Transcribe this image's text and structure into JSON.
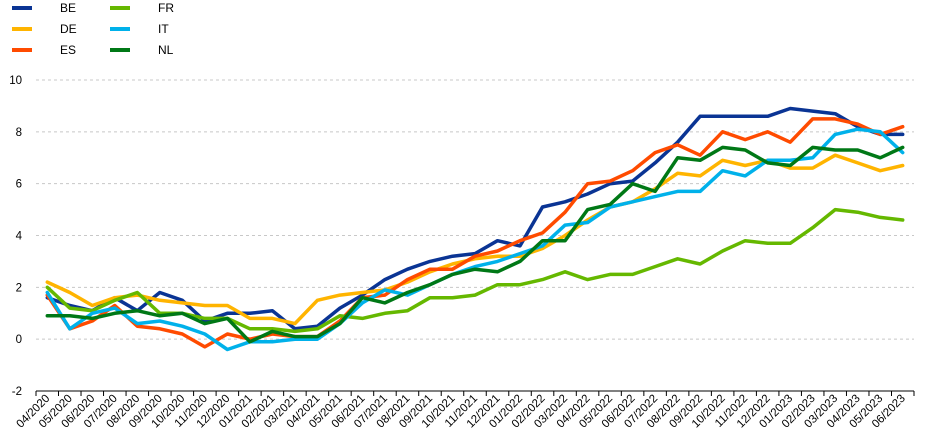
{
  "chart_data": {
    "type": "line",
    "title": "",
    "xlabel": "",
    "ylabel": "",
    "ylim": [
      -2,
      10
    ],
    "yticks": [
      -2,
      0,
      2,
      4,
      6,
      8,
      10
    ],
    "grid": "horizontal dashed",
    "legend_placement": "top-left",
    "categories": [
      "04/2020",
      "05/2020",
      "06/2020",
      "07/2020",
      "08/2020",
      "09/2020",
      "10/2020",
      "11/2020",
      "12/2020",
      "01/2021",
      "02/2021",
      "03/2021",
      "04/2021",
      "05/2021",
      "06/2021",
      "07/2021",
      "08/2021",
      "09/2021",
      "10/2021",
      "11/2021",
      "12/2021",
      "01/2022",
      "02/2022",
      "03/2022",
      "04/2022",
      "05/2022",
      "06/2022",
      "07/2022",
      "08/2022",
      "09/2022",
      "10/2022",
      "11/2022",
      "12/2022",
      "01/2023",
      "02/2023",
      "03/2023",
      "04/2023",
      "05/2023",
      "06/2023"
    ],
    "series": [
      {
        "name": "BE",
        "color": "#0a3494",
        "values": [
          1.6,
          1.3,
          1.1,
          1.6,
          1.1,
          1.8,
          1.5,
          0.7,
          1.0,
          1.0,
          1.1,
          0.4,
          0.5,
          1.2,
          1.7,
          2.3,
          2.7,
          3.0,
          3.2,
          3.3,
          3.8,
          3.6,
          5.1,
          5.3,
          5.6,
          6.0,
          6.1,
          6.8,
          7.6,
          8.6,
          8.6,
          8.6,
          8.6,
          8.9,
          8.8,
          8.7,
          8.2,
          7.9,
          7.9
        ]
      },
      {
        "name": "DE",
        "color": "#ffb400",
        "values": [
          2.2,
          1.8,
          1.3,
          1.6,
          1.7,
          1.5,
          1.4,
          1.3,
          1.3,
          0.8,
          0.8,
          0.6,
          1.5,
          1.7,
          1.8,
          1.9,
          2.2,
          2.6,
          2.9,
          3.1,
          3.2,
          3.2,
          3.5,
          4.0,
          4.6,
          5.1,
          5.3,
          5.8,
          6.4,
          6.3,
          6.9,
          6.7,
          6.9,
          6.6,
          6.6,
          7.1,
          6.8,
          6.5,
          6.7
        ]
      },
      {
        "name": "ES",
        "color": "#ff4b00",
        "values": [
          1.7,
          0.4,
          0.7,
          1.3,
          0.5,
          0.4,
          0.2,
          -0.3,
          0.2,
          0.0,
          0.2,
          0.1,
          0.1,
          0.7,
          1.6,
          1.7,
          2.3,
          2.7,
          2.7,
          3.2,
          3.4,
          3.8,
          4.1,
          4.9,
          6.0,
          6.1,
          6.5,
          7.2,
          7.5,
          7.1,
          8.0,
          7.7,
          8.0,
          7.6,
          8.5,
          8.5,
          8.3,
          7.9,
          8.2
        ]
      },
      {
        "name": "FR",
        "color": "#65b800",
        "values": [
          2.0,
          1.2,
          1.1,
          1.5,
          1.8,
          1.0,
          1.0,
          0.8,
          0.8,
          0.4,
          0.4,
          0.3,
          0.4,
          0.9,
          0.8,
          1.0,
          1.1,
          1.6,
          1.6,
          1.7,
          2.1,
          2.1,
          2.3,
          2.6,
          2.3,
          2.5,
          2.5,
          2.8,
          3.1,
          2.9,
          3.4,
          3.8,
          3.7,
          3.7,
          4.3,
          5.0,
          4.9,
          4.7,
          4.6
        ]
      },
      {
        "name": "IT",
        "color": "#00b1ea",
        "values": [
          1.8,
          0.4,
          1.0,
          1.2,
          0.6,
          0.7,
          0.5,
          0.2,
          -0.4,
          -0.1,
          -0.1,
          0.0,
          0.0,
          0.6,
          1.4,
          1.9,
          1.7,
          2.1,
          2.5,
          2.8,
          3.0,
          3.3,
          3.6,
          4.4,
          4.5,
          5.1,
          5.3,
          5.5,
          5.7,
          5.7,
          6.5,
          6.3,
          6.9,
          6.9,
          7.0,
          7.9,
          8.1,
          8.0,
          7.2
        ]
      },
      {
        "name": "NL",
        "color": "#007816",
        "values": [
          0.9,
          0.9,
          0.8,
          1.0,
          1.1,
          0.9,
          1.0,
          0.6,
          0.8,
          -0.1,
          0.3,
          0.1,
          0.1,
          0.6,
          1.6,
          1.4,
          1.8,
          2.1,
          2.5,
          2.7,
          2.6,
          3.0,
          3.8,
          3.8,
          5.0,
          5.2,
          6.0,
          5.7,
          7.0,
          6.9,
          7.4,
          7.3,
          6.8,
          6.7,
          7.4,
          7.3,
          7.3,
          7.0,
          7.4
        ]
      }
    ]
  }
}
